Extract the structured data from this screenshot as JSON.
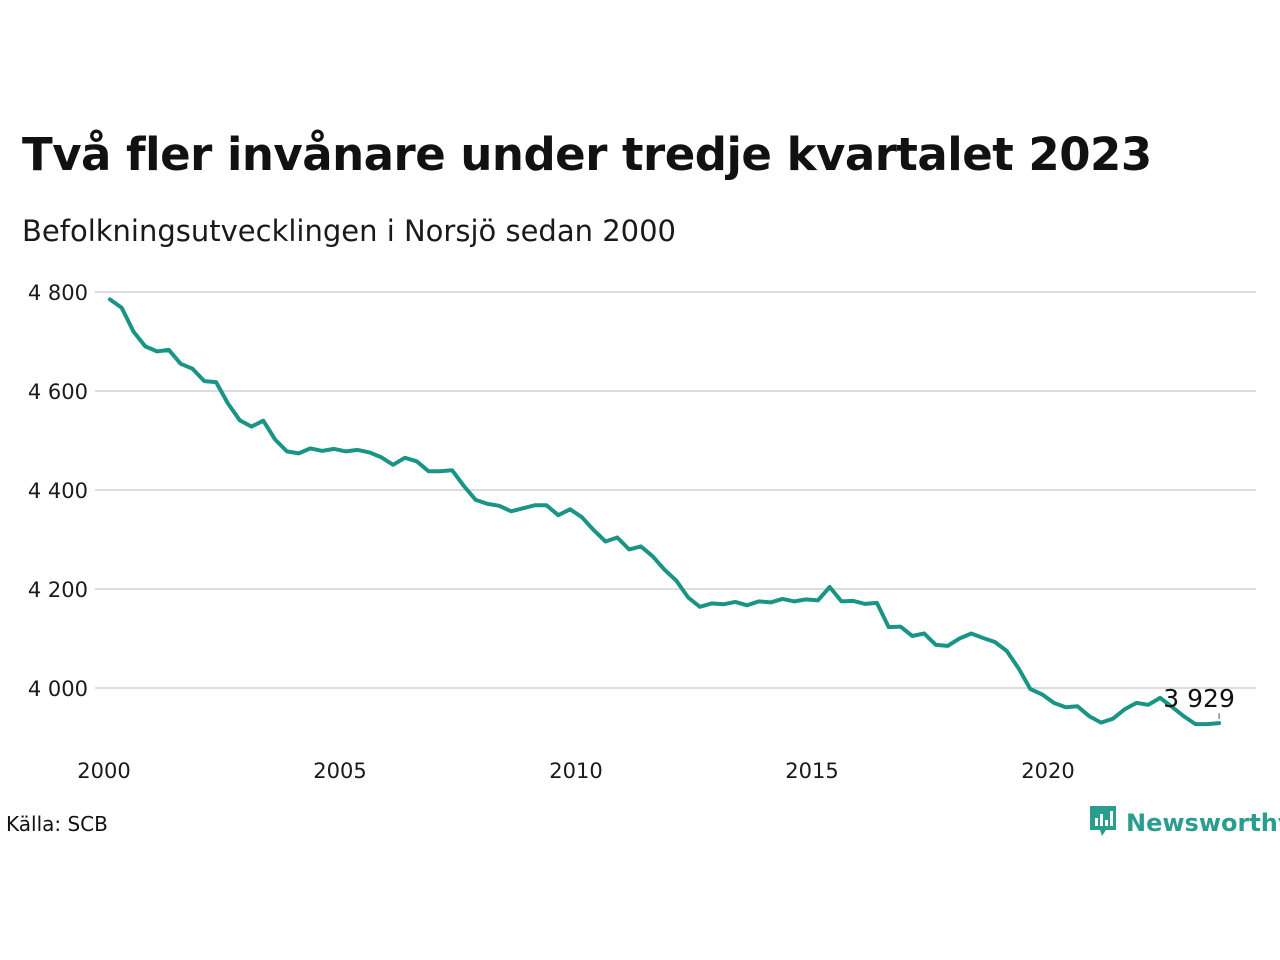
{
  "header": {
    "title": "Två fler invånare under tredje kvartalet 2023",
    "subtitle": "Befolkningsutvecklingen i Norsjö sedan 2000"
  },
  "footer": {
    "source": "Källa: SCB",
    "brand": "Newsworthy"
  },
  "icons": {
    "brand_logo": "chat-bubble-bar-chart-icon"
  },
  "colors": {
    "line": "#1a9485",
    "grid": "#dddddd",
    "brand": "#2a9d8f"
  },
  "chart_data": {
    "type": "line",
    "title": "Två fler invånare under tredje kvartalet 2023",
    "subtitle": "Befolkningsutvecklingen i Norsjö sedan 2000",
    "xlabel": "",
    "ylabel": "",
    "x_ticks": [
      2000,
      2005,
      2010,
      2015,
      2020
    ],
    "x_tick_labels": [
      "2000",
      "2005",
      "2010",
      "2015",
      "2020"
    ],
    "y_ticks": [
      4000,
      4200,
      4400,
      4600,
      4800
    ],
    "y_tick_labels": [
      "4 000",
      "4 200",
      "4 400",
      "4 600",
      "4 800"
    ],
    "xlim": [
      2000,
      2023.75
    ],
    "ylim": [
      3880,
      4800
    ],
    "grid": true,
    "legend": "none",
    "end_label": "3 929",
    "series": [
      {
        "x": [
          "2000Q1",
          "2000Q2",
          "2000Q3",
          "2000Q4",
          "2001Q1",
          "2001Q2",
          "2001Q3",
          "2001Q4",
          "2002Q1",
          "2002Q2",
          "2002Q3",
          "2002Q4",
          "2003Q1",
          "2003Q2",
          "2003Q3",
          "2003Q4",
          "2004Q1",
          "2004Q2",
          "2004Q3",
          "2004Q4",
          "2005Q1",
          "2005Q2",
          "2005Q3",
          "2005Q4",
          "2006Q1",
          "2006Q2",
          "2006Q3",
          "2006Q4",
          "2007Q1",
          "2007Q2",
          "2007Q3",
          "2007Q4",
          "2008Q1",
          "2008Q2",
          "2008Q3",
          "2008Q4",
          "2009Q1",
          "2009Q2",
          "2009Q3",
          "2009Q4",
          "2010Q1",
          "2010Q2",
          "2010Q3",
          "2010Q4",
          "2011Q1",
          "2011Q2",
          "2011Q3",
          "2011Q4",
          "2012Q1",
          "2012Q2",
          "2012Q3",
          "2012Q4",
          "2013Q1",
          "2013Q2",
          "2013Q3",
          "2013Q4",
          "2014Q1",
          "2014Q2",
          "2014Q3",
          "2014Q4",
          "2015Q1",
          "2015Q2",
          "2015Q3",
          "2015Q4",
          "2016Q1",
          "2016Q2",
          "2016Q3",
          "2016Q4",
          "2017Q1",
          "2017Q2",
          "2017Q3",
          "2017Q4",
          "2018Q1",
          "2018Q2",
          "2018Q3",
          "2018Q4",
          "2019Q1",
          "2019Q2",
          "2019Q3",
          "2019Q4",
          "2020Q1",
          "2020Q2",
          "2020Q3",
          "2020Q4",
          "2021Q1",
          "2021Q2",
          "2021Q3",
          "2021Q4",
          "2022Q1",
          "2022Q2",
          "2022Q3",
          "2022Q4",
          "2023Q1",
          "2023Q2",
          "2023Q3"
        ],
        "values": [
          4785,
          4768,
          4720,
          4690,
          4680,
          4683,
          4655,
          4645,
          4620,
          4618,
          4575,
          4541,
          4528,
          4540,
          4502,
          4478,
          4474,
          4484,
          4479,
          4483,
          4478,
          4481,
          4476,
          4466,
          4451,
          4465,
          4458,
          4438,
          4438,
          4440,
          4408,
          4380,
          4372,
          4368,
          4357,
          4363,
          4369,
          4369,
          4349,
          4361,
          4345,
          4319,
          4296,
          4304,
          4280,
          4286,
          4266,
          4239,
          4217,
          4183,
          4164,
          4171,
          4169,
          4174,
          4167,
          4175,
          4173,
          4180,
          4175,
          4179,
          4177,
          4204,
          4175,
          4176,
          4170,
          4172,
          4123,
          4124,
          4105,
          4110,
          4087,
          4085,
          4100,
          4110,
          4101,
          4093,
          4075,
          4040,
          3998,
          3987,
          3970,
          3961,
          3963,
          3943,
          3930,
          3938,
          3957,
          3970,
          3966,
          3980,
          3962,
          3943,
          3927,
          3927,
          3929
        ]
      }
    ]
  }
}
